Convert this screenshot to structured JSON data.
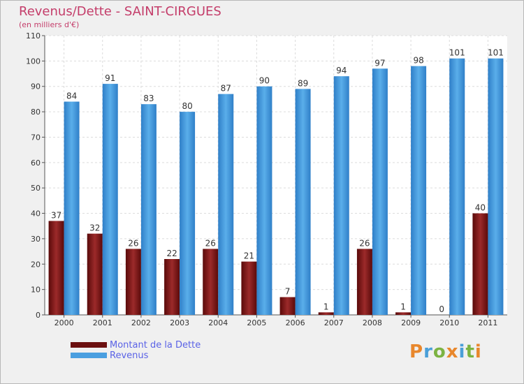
{
  "title": "Revenus/Dette - SAINT-CIRGUES",
  "subtitle": "(en milliers d'€)",
  "legend": {
    "debt_label": "Montant de la Dette",
    "revenue_label": "Revenus"
  },
  "logo": {
    "text": "Proxiti",
    "colors": [
      "#e8872c",
      "#4a9fd8",
      "#7cb342",
      "#e8872c",
      "#4a9fd8",
      "#7cb342",
      "#e8872c"
    ]
  },
  "colors": {
    "debt": "#8b1a1a",
    "revenue": "#4a9fe0",
    "background": "#f0f0f0"
  },
  "chart_data": {
    "type": "bar",
    "title": "Revenus/Dette - SAINT-CIRGUES",
    "subtitle": "(en milliers d'€)",
    "xlabel": "",
    "ylabel": "",
    "categories": [
      "2000",
      "2001",
      "2002",
      "2003",
      "2004",
      "2005",
      "2006",
      "2007",
      "2008",
      "2009",
      "2010",
      "2011"
    ],
    "series": [
      {
        "name": "Montant de la Dette",
        "values": [
          37,
          32,
          26,
          22,
          26,
          21,
          7,
          1,
          26,
          1,
          0,
          40
        ]
      },
      {
        "name": "Revenus",
        "values": [
          84,
          91,
          83,
          80,
          87,
          90,
          89,
          94,
          97,
          98,
          101,
          101
        ]
      }
    ],
    "ylim": [
      0,
      110
    ],
    "yticks": [
      0,
      10,
      20,
      30,
      40,
      50,
      60,
      70,
      80,
      90,
      100,
      110
    ],
    "grid": true,
    "legend_position": "bottom-left"
  }
}
